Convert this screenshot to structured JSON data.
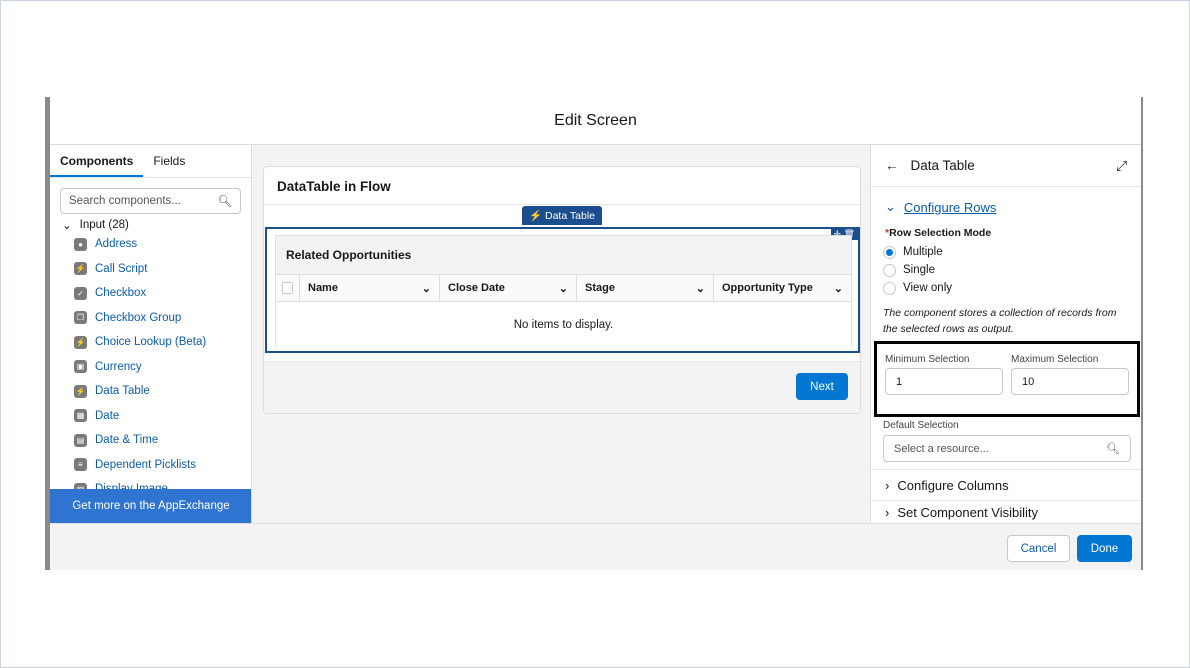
{
  "modal": {
    "title": "Edit Screen"
  },
  "left": {
    "tabs": [
      "Components",
      "Fields"
    ],
    "search_placeholder": "Search components...",
    "group": "Input (28)",
    "items": [
      {
        "label": "Address",
        "icon": "pin-icon"
      },
      {
        "label": "Call Script",
        "icon": "bolt-icon"
      },
      {
        "label": "Checkbox",
        "icon": "checkbox-icon"
      },
      {
        "label": "Checkbox Group",
        "icon": "checkbox-group-icon"
      },
      {
        "label": "Choice Lookup (Beta)",
        "icon": "bolt-icon"
      },
      {
        "label": "Currency",
        "icon": "currency-icon"
      },
      {
        "label": "Data Table",
        "icon": "bolt-icon"
      },
      {
        "label": "Date",
        "icon": "calendar-icon"
      },
      {
        "label": "Date & Time",
        "icon": "calendar-clock-icon"
      },
      {
        "label": "Dependent Picklists",
        "icon": "list-icon"
      },
      {
        "label": "Display Image",
        "icon": "image-icon"
      }
    ],
    "appexchange": "Get more on the AppExchange"
  },
  "canvas": {
    "screen_title": "DataTable in Flow",
    "badge": "Data Table",
    "table_title": "Related Opportunities",
    "columns": [
      "Name",
      "Close Date",
      "Stage",
      "Opportunity Type"
    ],
    "empty": "No items to display.",
    "next": "Next"
  },
  "right": {
    "title": "Data Table",
    "section": "Configure Rows",
    "mode_label": "Row Selection Mode",
    "modes": [
      "Multiple",
      "Single",
      "View only"
    ],
    "selected_mode": "Multiple",
    "help": "The component stores a collection of records from the selected rows as output.",
    "min_label": "Minimum Selection",
    "min_value": "1",
    "max_label": "Maximum Selection",
    "max_value": "10",
    "default_label": "Default Selection",
    "default_placeholder": "Select a resource...",
    "configure_columns": "Configure Columns",
    "visibility": "Set Component Visibility"
  },
  "footer": {
    "cancel": "Cancel",
    "done": "Done"
  },
  "colors": {
    "brand": "#0176d3",
    "highlight_box": "#000000"
  }
}
